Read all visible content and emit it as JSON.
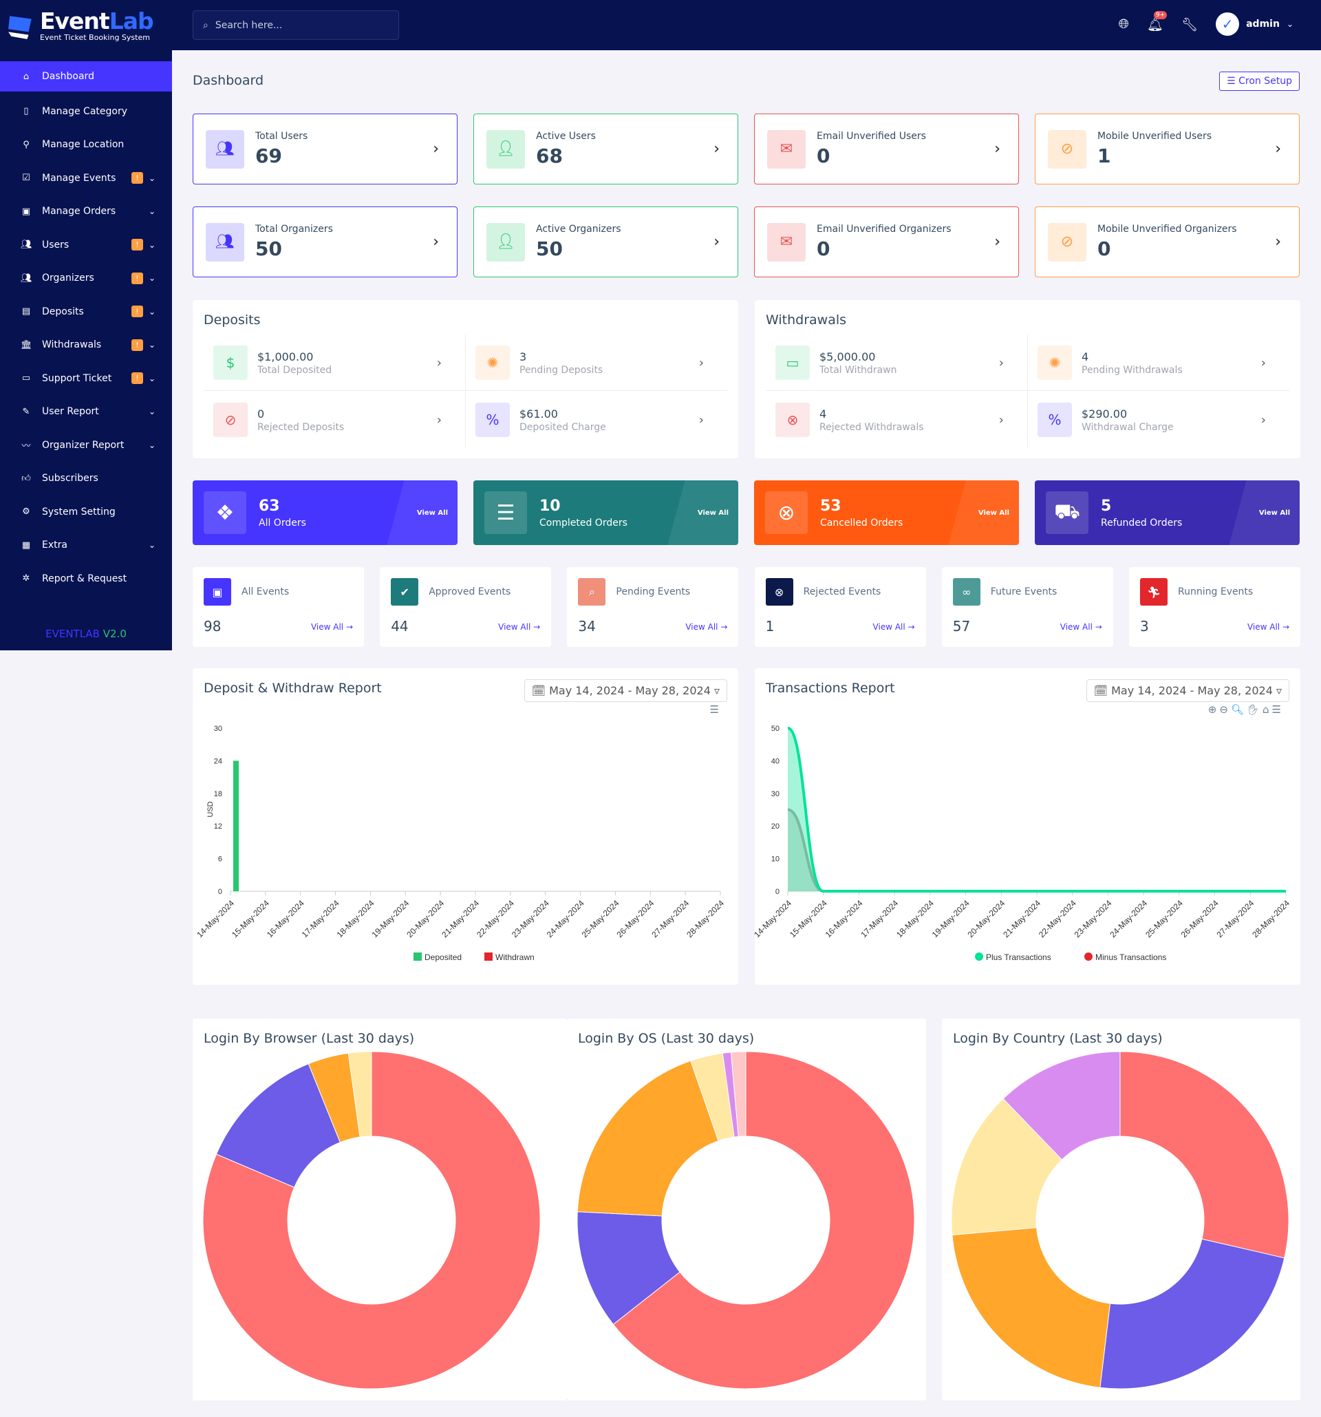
{
  "brand": {
    "name_a": "Event",
    "name_b": "Lab",
    "tagline": "Event Ticket Booking System",
    "version_a": "EVENTLAB",
    "version_b": "V2.0"
  },
  "search": {
    "placeholder": "Search here..."
  },
  "header": {
    "notif_count": "9+",
    "user": "admin"
  },
  "sidebar": {
    "items": [
      {
        "label": "Dashboard",
        "icon": "home-icon",
        "active": true
      },
      {
        "label": "Manage Category",
        "icon": "tablet-icon"
      },
      {
        "label": "Manage Location",
        "icon": "map-pin-icon"
      },
      {
        "label": "Manage Events",
        "icon": "calendar-check-icon",
        "badge": "!",
        "chevron": true
      },
      {
        "label": "Manage Orders",
        "icon": "money-icon",
        "chevron": true
      },
      {
        "label": "Users",
        "icon": "users-icon",
        "badge": "!",
        "chevron": true
      },
      {
        "label": "Organizers",
        "icon": "users-icon",
        "badge": "!",
        "chevron": true
      },
      {
        "label": "Deposits",
        "icon": "file-money-icon",
        "badge": "!",
        "chevron": true
      },
      {
        "label": "Withdrawals",
        "icon": "bank-icon",
        "badge": "!",
        "chevron": true
      },
      {
        "label": "Support Ticket",
        "icon": "ticket-icon",
        "badge": "!",
        "chevron": true
      },
      {
        "label": "User Report",
        "icon": "report-icon",
        "chevron": true
      },
      {
        "label": "Organizer Report",
        "icon": "chart-icon",
        "chevron": true
      },
      {
        "label": "Subscribers",
        "icon": "thumbs-up-icon"
      },
      {
        "label": "System Setting",
        "icon": "gear-icon"
      },
      {
        "label": "Extra",
        "icon": "grid-icon",
        "chevron": true
      },
      {
        "label": "Report & Request",
        "icon": "bug-icon"
      }
    ]
  },
  "page": {
    "title": "Dashboard",
    "cron_label": "Cron Setup"
  },
  "widgets": [
    {
      "label": "Total Users",
      "value": "69",
      "color": "#4634ff",
      "bg": "#dcd9ff",
      "icon": "users-icon"
    },
    {
      "label": "Active Users",
      "value": "68",
      "color": "#28c76f",
      "bg": "#d4f4e2",
      "icon": "user-check-icon"
    },
    {
      "label": "Email Unverified Users",
      "value": "0",
      "color": "#ea5455",
      "bg": "#fbdddd",
      "icon": "envelope-icon"
    },
    {
      "label": "Mobile Unverified Users",
      "value": "1",
      "color": "#ff9f43",
      "bg": "#ffecd9",
      "icon": "mobile-off-icon"
    },
    {
      "label": "Total Organizers",
      "value": "50",
      "color": "#4634ff",
      "bg": "#dcd9ff",
      "icon": "users-icon"
    },
    {
      "label": "Active Organizers",
      "value": "50",
      "color": "#28c76f",
      "bg": "#d4f4e2",
      "icon": "user-check-icon"
    },
    {
      "label": "Email Unverified Organizers",
      "value": "0",
      "color": "#ea5455",
      "bg": "#fbdddd",
      "icon": "envelope-icon"
    },
    {
      "label": "Mobile Unverified Organizers",
      "value": "0",
      "color": "#ff9f43",
      "bg": "#ffecd9",
      "icon": "mobile-off-icon"
    }
  ],
  "deposits": {
    "title": "Deposits",
    "items": [
      {
        "value": "$1,000.00",
        "label": "Total Deposited",
        "color": "#28c76f",
        "icon": "hand-money-icon"
      },
      {
        "value": "3",
        "label": "Pending Deposits",
        "color": "#ff9f43",
        "icon": "spinner-icon"
      },
      {
        "value": "0",
        "label": "Rejected Deposits",
        "color": "#ea5455",
        "icon": "ban-icon"
      },
      {
        "value": "$61.00",
        "label": "Deposited Charge",
        "color": "#4634ff",
        "icon": "percent-icon"
      }
    ]
  },
  "withdrawals": {
    "title": "Withdrawals",
    "items": [
      {
        "value": "$5,000.00",
        "label": "Total Withdrawn",
        "color": "#28c76f",
        "icon": "card-icon"
      },
      {
        "value": "4",
        "label": "Pending Withdrawals",
        "color": "#ff9f43",
        "icon": "spinner-icon"
      },
      {
        "value": "4",
        "label": "Rejected Withdrawals",
        "color": "#ea5455",
        "icon": "close-circle-icon"
      },
      {
        "value": "$290.00",
        "label": "Withdrawal Charge",
        "color": "#4634ff",
        "icon": "percent-icon"
      }
    ]
  },
  "orders": {
    "view_all": "View All",
    "items": [
      {
        "value": "63",
        "label": "All Orders",
        "color": "#4634ff",
        "icon": "dropbox-icon"
      },
      {
        "value": "10",
        "label": "Completed Orders",
        "color": "#1d7b7b",
        "icon": "list-check-icon"
      },
      {
        "value": "53",
        "label": "Cancelled Orders",
        "color": "#ff5a10",
        "icon": "close-circle-icon"
      },
      {
        "value": "5",
        "label": "Refunded Orders",
        "color": "#3a2bb0",
        "icon": "dolly-icon"
      }
    ]
  },
  "events": {
    "view_all": "View All",
    "items": [
      {
        "label": "All Events",
        "value": "98",
        "color": "#4634ff",
        "icon": "calendar-icon"
      },
      {
        "label": "Approved Events",
        "value": "44",
        "color": "#1d7b7b",
        "icon": "check-double-icon"
      },
      {
        "label": "Pending Events",
        "value": "34",
        "color": "#f0907a",
        "icon": "search-icon"
      },
      {
        "label": "Rejected Events",
        "value": "1",
        "color": "#0b1a4a",
        "icon": "close-circle-icon"
      },
      {
        "label": "Future Events",
        "value": "57",
        "color": "#4d9a96",
        "icon": "binoculars-icon"
      },
      {
        "label": "Running Events",
        "value": "3",
        "color": "#e3262c",
        "icon": "running-icon"
      }
    ]
  },
  "chart_data": [
    {
      "type": "bar",
      "title": "Deposit & Withdraw Report",
      "date_range": "May 14, 2024 - May 28, 2024",
      "ylabel": "USD",
      "ylim": [
        0,
        30
      ],
      "yticks": [
        "0",
        "6",
        "12",
        "18",
        "24",
        "30"
      ],
      "categories": [
        "14-May-2024",
        "15-May-2024",
        "16-May-2024",
        "17-May-2024",
        "18-May-2024",
        "19-May-2024",
        "20-May-2024",
        "21-May-2024",
        "22-May-2024",
        "23-May-2024",
        "24-May-2024",
        "25-May-2024",
        "26-May-2024",
        "27-May-2024",
        "28-May-2024"
      ],
      "series": [
        {
          "name": "Deposited",
          "color": "#28c76f",
          "values": [
            24,
            0,
            0,
            0,
            0,
            0,
            0,
            0,
            0,
            0,
            0,
            0,
            0,
            0,
            0
          ]
        },
        {
          "name": "Withdrawn",
          "color": "#e3262c",
          "values": [
            0,
            0,
            0,
            0,
            0,
            0,
            0,
            0,
            0,
            0,
            0,
            0,
            0,
            0,
            0
          ]
        }
      ],
      "legend": "bottom",
      "grid": false
    },
    {
      "type": "area",
      "title": "Transactions Report",
      "date_range": "May 14, 2024 - May 28, 2024",
      "ylim": [
        0,
        50
      ],
      "yticks": [
        "0",
        "10",
        "20",
        "30",
        "40",
        "50"
      ],
      "categories": [
        "14-May-2024",
        "15-May-2024",
        "16-May-2024",
        "17-May-2024",
        "18-May-2024",
        "19-May-2024",
        "20-May-2024",
        "21-May-2024",
        "22-May-2024",
        "23-May-2024",
        "24-May-2024",
        "25-May-2024",
        "26-May-2024",
        "27-May-2024",
        "28-May-2024"
      ],
      "series": [
        {
          "name": "Plus Transactions",
          "color": "#00e396",
          "values": [
            50,
            0,
            0,
            0,
            0,
            0,
            0,
            0,
            0,
            0,
            0,
            0,
            0,
            0,
            0
          ]
        },
        {
          "name": "Minus Transactions",
          "color": "#e3262c",
          "values": [
            25,
            0,
            0,
            0,
            0,
            0,
            0,
            0,
            0,
            0,
            0,
            0,
            0,
            0,
            0
          ]
        }
      ],
      "legend": "bottom",
      "grid": false
    },
    {
      "type": "pie",
      "title": "Login By Browser (Last 30 days)",
      "donut": true,
      "values": [
        81.4,
        12.5,
        3.9,
        2.2
      ],
      "colors": [
        "#ff7070",
        "#6c5ce7",
        "#ffa62b",
        "#ffe8a3"
      ]
    },
    {
      "type": "pie",
      "title": "Login By OS (Last 30 days)",
      "donut": true,
      "values": [
        64.4,
        11.4,
        18.9,
        3.1,
        0.8,
        1.4
      ],
      "colors": [
        "#ff7070",
        "#6c5ce7",
        "#ffa62b",
        "#ffe8a3",
        "#d98cf0",
        "#ffc7c7"
      ]
    },
    {
      "type": "pie",
      "title": "Login By Country (Last 30 days)",
      "donut": true,
      "values": [
        28.6,
        23.3,
        21.7,
        14.2,
        12.2
      ],
      "colors": [
        "#ff7070",
        "#6c5ce7",
        "#ffa62b",
        "#ffe8a3",
        "#d98cf0"
      ]
    }
  ]
}
